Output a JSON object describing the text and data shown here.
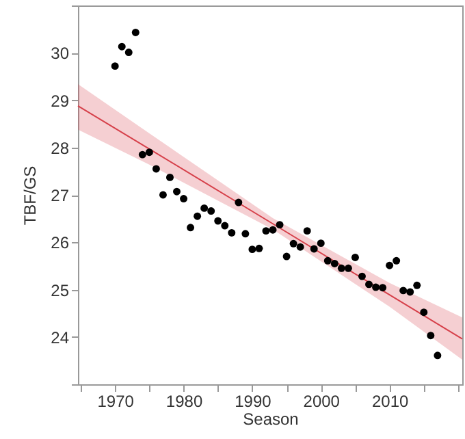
{
  "chart_data": {
    "type": "scatter",
    "xlabel": "Season",
    "ylabel": "TBF/GS",
    "xlim": [
      1964.6,
      2020.6
    ],
    "ylim": [
      23,
      31
    ],
    "xticks": [
      {
        "value": 1965,
        "label": null
      },
      1970,
      {
        "value": 1975,
        "label": null
      },
      1980,
      {
        "value": 1985,
        "label": null
      },
      1990,
      {
        "value": 1995,
        "label": null
      },
      2000,
      {
        "value": 2005,
        "label": null
      },
      2010,
      {
        "value": 2015,
        "label": null
      },
      {
        "value": 2020,
        "label": null
      }
    ],
    "yticks": [
      {
        "value": 23,
        "label": null
      },
      24,
      25,
      26,
      27,
      28,
      29,
      30,
      {
        "value": 31,
        "label": null
      }
    ],
    "grid": false,
    "marker": "circle",
    "series": [
      {
        "color": "#000000",
        "x": [
          1970,
          1971,
          1972,
          1973,
          1974,
          1975,
          1976,
          1977,
          1978,
          1979,
          1980,
          1981,
          1982,
          1983,
          1984,
          1985,
          1986,
          1987,
          1988,
          1989,
          1990,
          1991,
          1992,
          1993,
          1994,
          1995,
          1996,
          1997,
          1998,
          1999,
          2000,
          2001,
          2002,
          2003,
          2004,
          2005,
          2006,
          2007,
          2008,
          2009,
          2010,
          2011,
          2012,
          2013,
          2014,
          2015,
          2016,
          2017
        ],
        "values": [
          29.72,
          30.13,
          30.01,
          30.43,
          27.85,
          27.9,
          27.55,
          27.0,
          27.37,
          27.07,
          26.92,
          26.31,
          26.55,
          26.72,
          26.66,
          26.45,
          26.35,
          26.2,
          26.84,
          26.18,
          25.85,
          25.87,
          26.24,
          26.26,
          26.37,
          25.7,
          25.97,
          25.9,
          26.24,
          25.86,
          25.98,
          25.61,
          25.55,
          25.45,
          25.45,
          25.68,
          25.28,
          25.11,
          25.05,
          25.04,
          25.51,
          25.61,
          24.98,
          24.95,
          25.09,
          24.52,
          24.03,
          23.61
        ]
      },
      {
        "type": "line",
        "marker": "none",
        "color": "#d6404a",
        "x": [
          1964.6,
          1975,
          1993,
          2010,
          2020.6
        ],
        "values": [
          28.88,
          27.97,
          26.39,
          24.89,
          23.96
        ],
        "lower": [
          28.38,
          27.64,
          26.27,
          24.64,
          23.52
        ],
        "upper": [
          29.34,
          28.3,
          26.51,
          25.14,
          24.41
        ]
      }
    ]
  }
}
